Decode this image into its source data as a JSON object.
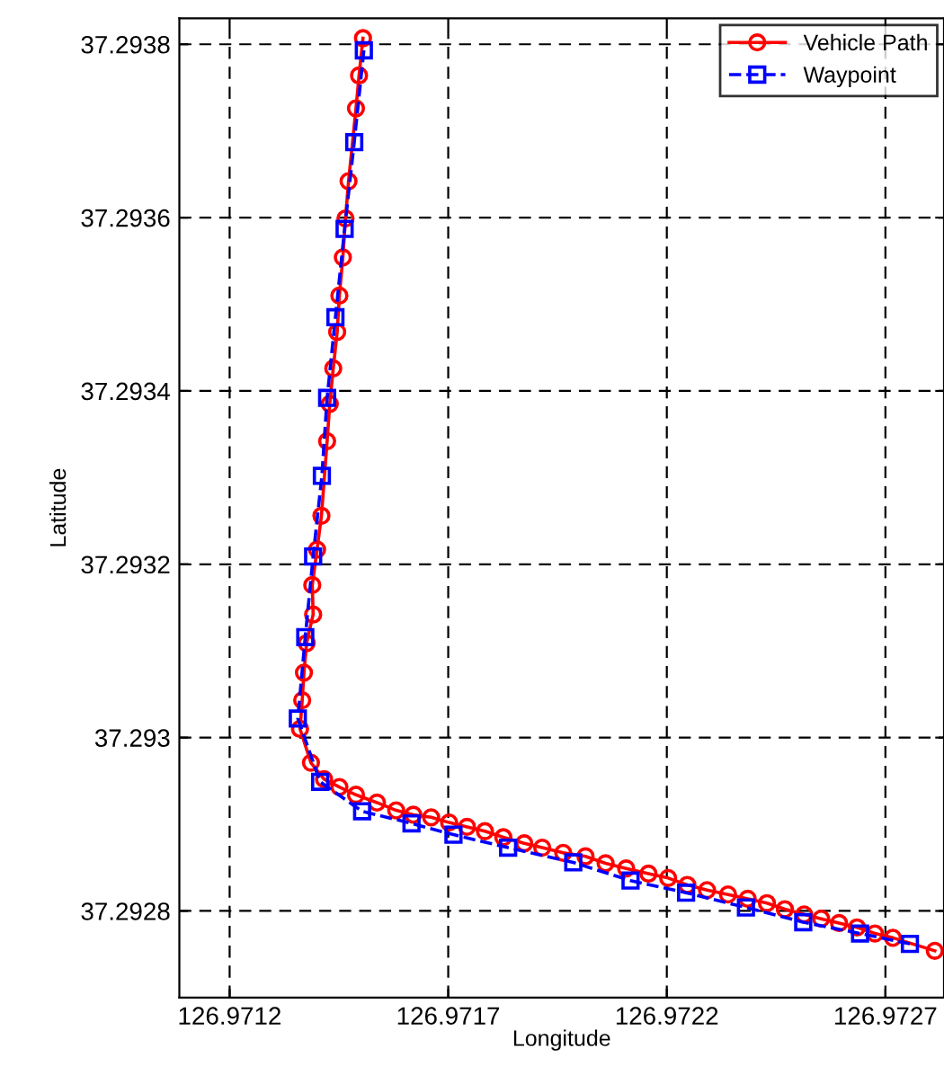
{
  "chart_data": {
    "type": "line",
    "xlabel": "Longitude",
    "ylabel": "Latitude",
    "xlim": [
      126.971085,
      126.972834
    ],
    "ylim": [
      37.2927,
      37.29383
    ],
    "xticks": [
      126.9712,
      126.9717,
      126.9722,
      126.9727
    ],
    "yticks": [
      37.2928,
      37.293,
      37.2932,
      37.2934,
      37.2936,
      37.2938
    ],
    "grid": true,
    "legend": "top right",
    "series": [
      {
        "name": "Vehicle Path",
        "color": "#ff0000",
        "marker": "circle",
        "line_style": "solid",
        "x": [
          126.971505,
          126.971496,
          126.971489,
          126.971472,
          126.971465,
          126.971459,
          126.971451,
          126.971446,
          126.971437,
          126.971429,
          126.971423,
          126.97141,
          126.9714,
          126.971389,
          126.971391,
          126.971376,
          126.97137,
          126.971366,
          126.971361,
          126.971386,
          126.971416,
          126.971451,
          126.971489,
          126.971537,
          126.971581,
          126.97162,
          126.971661,
          126.971702,
          126.971743,
          126.971784,
          126.971826,
          126.971874,
          126.971915,
          126.971963,
          126.972014,
          126.97206,
          126.972107,
          126.972158,
          126.972203,
          126.972247,
          126.972292,
          126.97234,
          126.972385,
          126.972429,
          126.97247,
          126.972514,
          126.972553,
          126.972594,
          126.972635,
          126.972676,
          126.972717,
          126.972813
        ],
        "values": [
          37.293807,
          37.293764,
          37.293726,
          37.293642,
          37.293599,
          37.293554,
          37.29351,
          37.293468,
          37.293426,
          37.293385,
          37.293342,
          37.293256,
          37.293217,
          37.293176,
          37.293142,
          37.293109,
          37.293075,
          37.293043,
          37.29301,
          37.292971,
          37.292952,
          37.292943,
          37.292934,
          37.292925,
          37.292916,
          37.292911,
          37.292908,
          37.292902,
          37.292897,
          37.292892,
          37.292885,
          37.292878,
          37.292873,
          37.292867,
          37.292863,
          37.292855,
          37.292849,
          37.292843,
          37.292838,
          37.29283,
          37.292824,
          37.292819,
          37.292814,
          37.292809,
          37.292802,
          37.292796,
          37.292791,
          37.292786,
          37.292781,
          37.292774,
          37.292769,
          37.292754
        ]
      },
      {
        "name": "Waypoint",
        "color": "#0000ff",
        "marker": "square",
        "line_style": "dashed",
        "x": [
          126.971507,
          126.971485,
          126.971463,
          126.971442,
          126.971423,
          126.971411,
          126.971391,
          126.971373,
          126.971356,
          126.971407,
          126.971503,
          126.971616,
          126.971712,
          126.971837,
          126.971986,
          126.972117,
          126.972244,
          126.972381,
          126.972512,
          126.972642,
          126.972756
        ],
        "values": [
          37.293793,
          37.293687,
          37.293587,
          37.293485,
          37.293392,
          37.293302,
          37.293209,
          37.293116,
          37.293022,
          37.292949,
          37.292915,
          37.292901,
          37.292888,
          37.292873,
          37.292856,
          37.292835,
          37.292821,
          37.292804,
          37.292787,
          37.292774,
          37.292762
        ]
      }
    ]
  }
}
